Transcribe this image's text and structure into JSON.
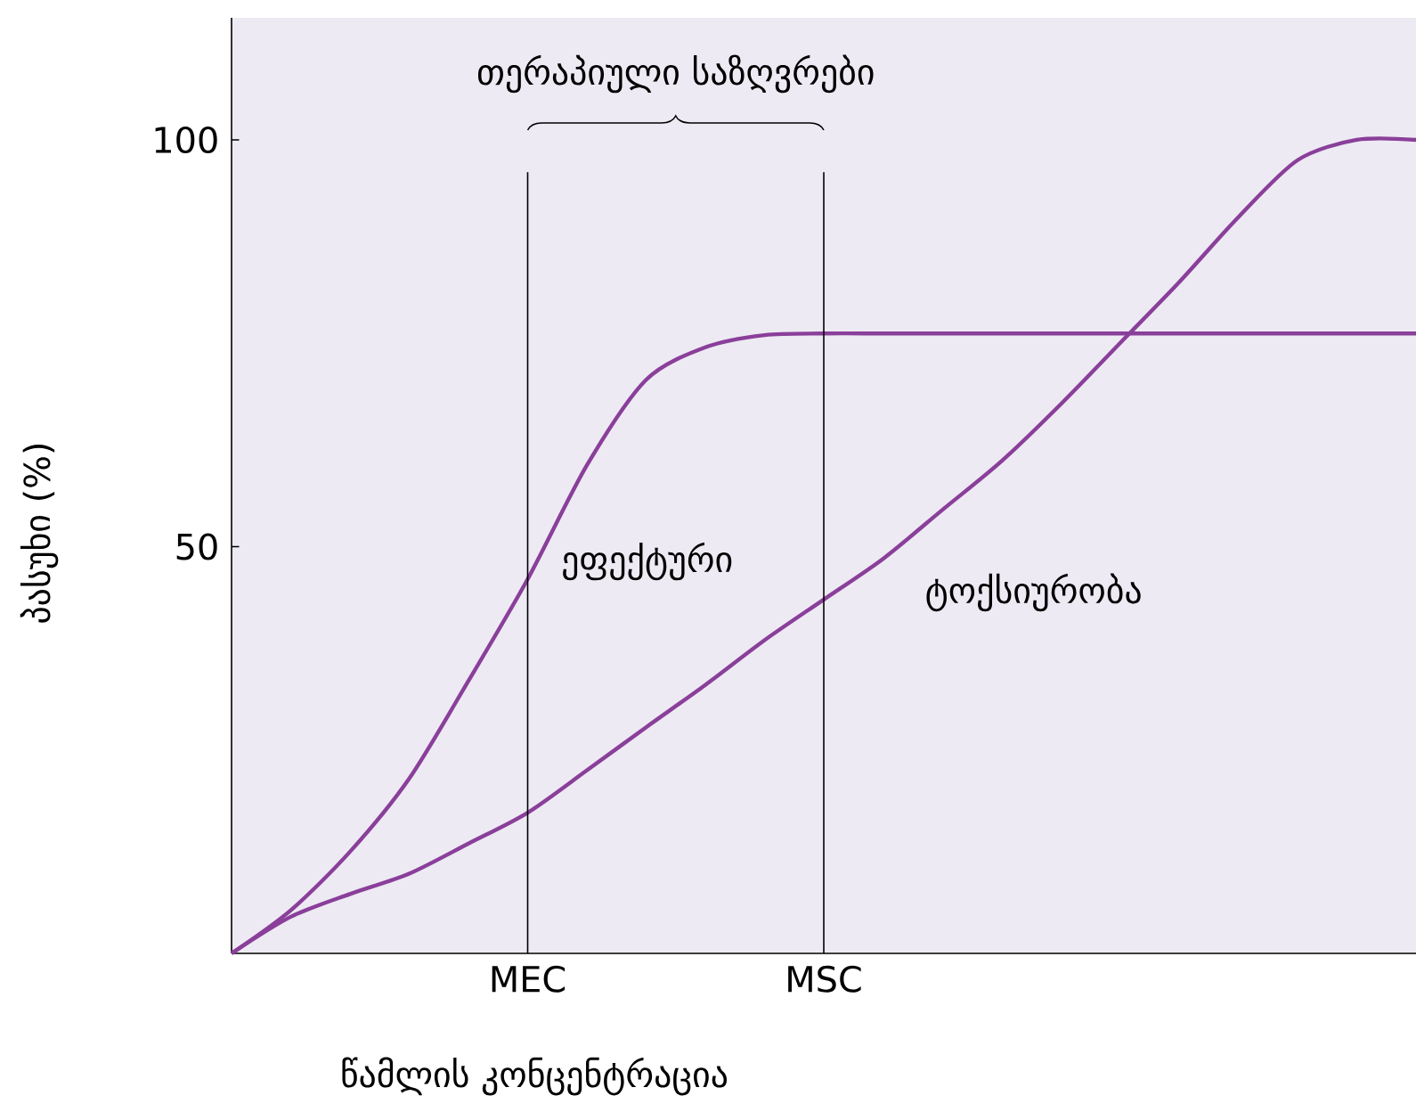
{
  "chart_data": {
    "type": "line",
    "xlabel": "წამლის კონცენტრაცია",
    "ylabel": "პასუხი (%)",
    "categories": [
      null,
      null,
      null,
      null,
      null,
      "MEC",
      null,
      null,
      null,
      null,
      "MSC",
      null,
      null,
      null,
      null,
      null,
      null,
      null,
      null,
      null,
      null
    ],
    "ylim": [
      0,
      115
    ],
    "yticks": [
      50,
      100
    ],
    "ref_lines": [
      {
        "axis": "x",
        "value": "MEC",
        "color": "#000000"
      },
      {
        "axis": "x",
        "value": "MSC",
        "color": "#000000"
      }
    ],
    "annotations": [
      "თერაპიული საზღვრები"
    ],
    "series": [
      {
        "name": "ეფექტური",
        "color": "#8a3f9a",
        "values": [
          0,
          5.3,
          12.5,
          21.5,
          33.5,
          46,
          60,
          70.5,
          74.5,
          76,
          76.2,
          76.2,
          76.2,
          76.2,
          76.2,
          76.2,
          76.2,
          76.2,
          76.2,
          76.2,
          76.2
        ]
      },
      {
        "name": "ტოქსიურობა",
        "color": "#8a3f9a",
        "values": [
          0,
          4.5,
          7.3,
          9.8,
          13.5,
          17.3,
          22.5,
          27.8,
          33,
          38.5,
          43.5,
          48.5,
          54.5,
          60.5,
          67.5,
          75,
          82.5,
          90.5,
          97.5,
          100,
          100
        ]
      }
    ]
  }
}
